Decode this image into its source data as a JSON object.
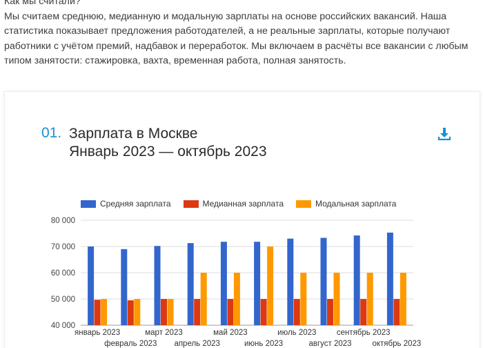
{
  "intro": {
    "heading": "Как мы считали?",
    "paragraph": "Мы считаем среднюю, медианную и модальную зарплаты на основе российских вакансий. Наша статистика показывает предложения работодателей, а не реальные зарплаты, которые получают работники с учётом премий, надбавок и переработок. Мы включаем в расчёты все вакансии с любым типом занятости: стажировка, вахта, временная работа, полная занятость."
  },
  "card": {
    "number": "01.",
    "title_line1": "Зарплата в Москве",
    "title_line2": "Январь 2023 — октябрь 2023",
    "download_icon": "download-icon"
  },
  "chart_data": {
    "type": "bar",
    "categories": [
      "январь 2023",
      "февраль 2023",
      "март 2023",
      "апрель 2023",
      "май 2023",
      "июнь 2023",
      "июль 2023",
      "август 2023",
      "сентябрь 2023",
      "октябрь 2023"
    ],
    "series": [
      {
        "name": "Средняя зарплата",
        "color": "#3366cc",
        "values": [
          70000,
          69000,
          70200,
          71300,
          71800,
          71800,
          73000,
          73300,
          74200,
          75300
        ]
      },
      {
        "name": "Медианная зарплата",
        "color": "#dc3912",
        "values": [
          49700,
          49500,
          50000,
          50000,
          50000,
          50000,
          50000,
          50000,
          50000,
          50000
        ]
      },
      {
        "name": "Модальная зарплата",
        "color": "#ff9900",
        "values": [
          50000,
          50000,
          50000,
          60000,
          60000,
          70000,
          60000,
          60000,
          60000,
          60000
        ]
      }
    ],
    "yticks": [
      "80 000",
      "70 000",
      "60 000",
      "50 000",
      "40 000"
    ],
    "ylim": [
      40000,
      80000
    ],
    "legend_position": "top",
    "grid": true
  }
}
